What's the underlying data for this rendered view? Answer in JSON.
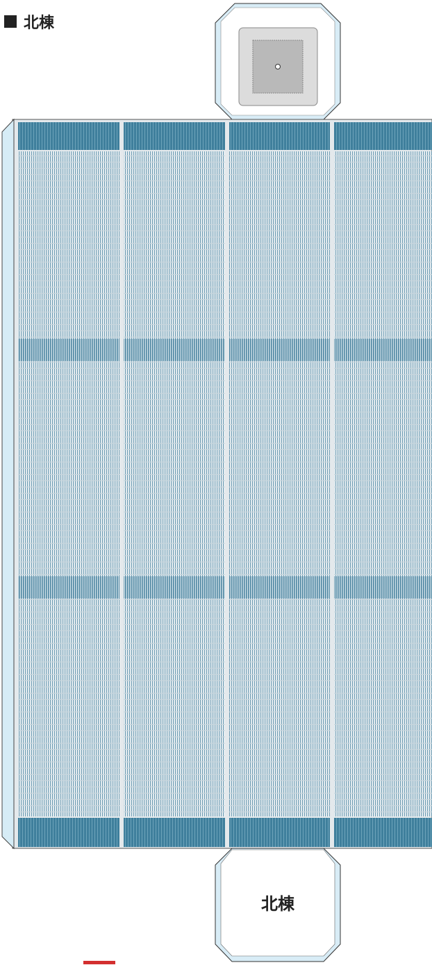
{
  "header": {
    "title": "北棟"
  },
  "labels": {
    "bottom_box": "北棟"
  }
}
